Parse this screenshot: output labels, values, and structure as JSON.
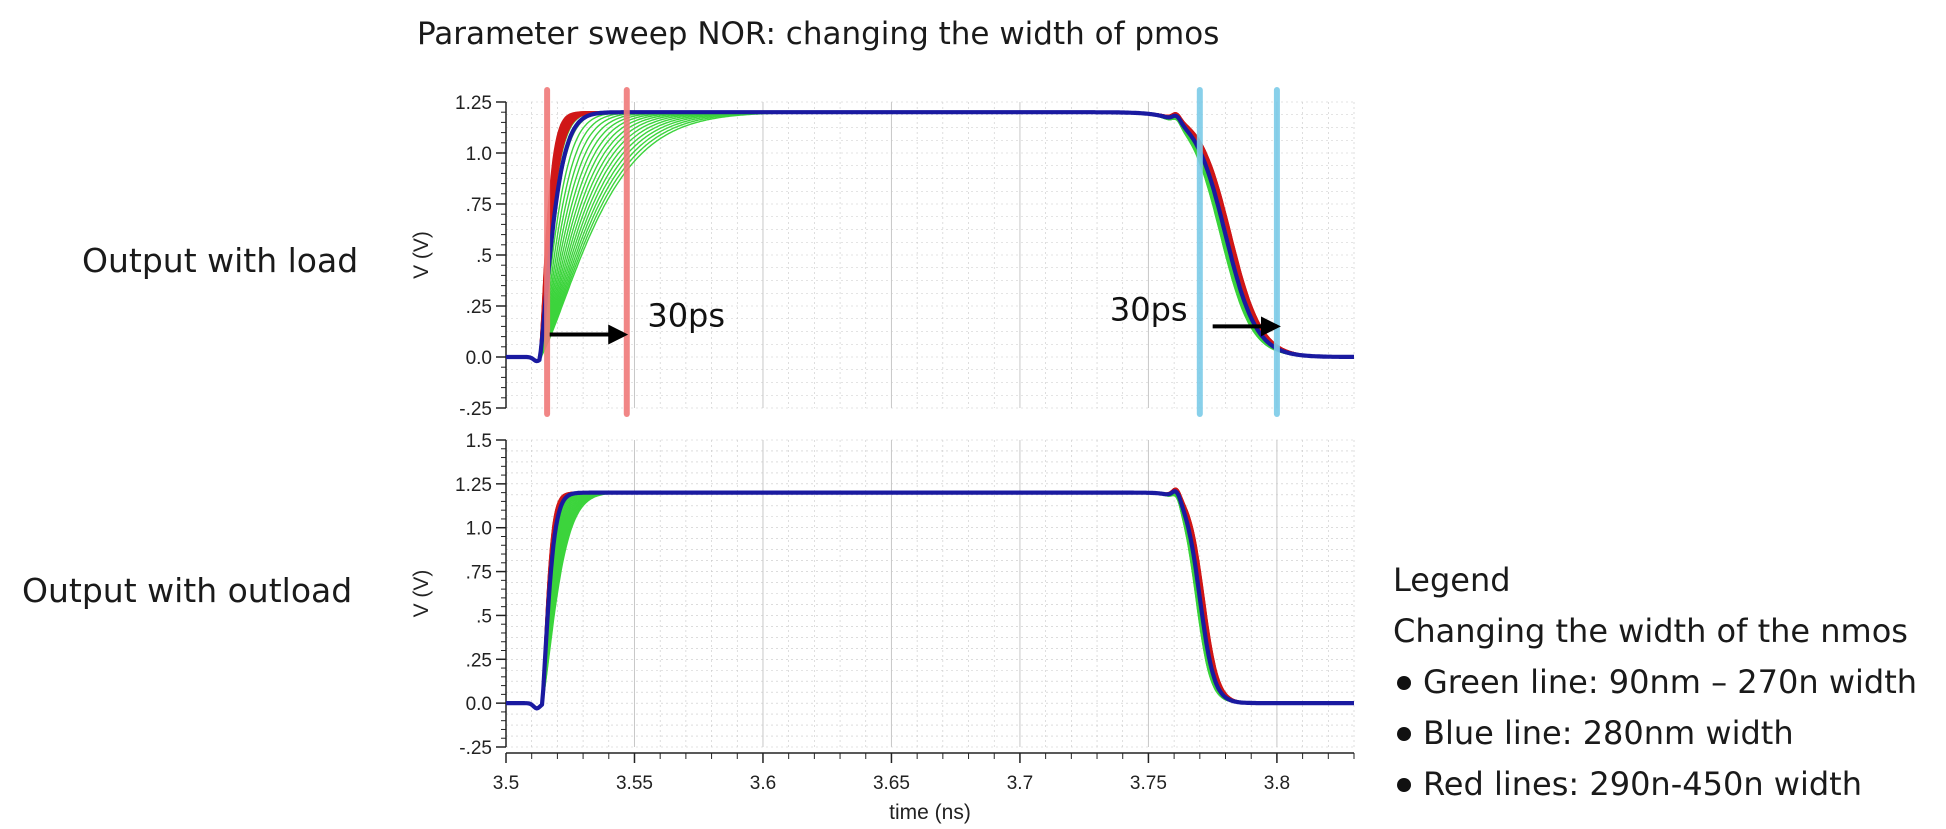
{
  "title": "Parameter sweep NOR: changing the width of pmos",
  "row_labels": [
    "Output with load",
    "Output with outload"
  ],
  "legend": {
    "heading": "Legend",
    "subheading": "Changing the width of the nmos",
    "items": [
      {
        "text": "Green line: 90nm – 270n width",
        "color": "#2fcc2f"
      },
      {
        "text": "Blue line: 280nm width",
        "color": "#1c1ca8"
      },
      {
        "text": "Red lines: 290n-450n width",
        "color": "#d42020"
      }
    ]
  },
  "colors": {
    "green": "#3cd43c",
    "blue": "#1a1aa0",
    "red": "#d01818",
    "marker_red": "#f07a7a",
    "marker_blue": "#7ccbe8",
    "grid": "#c8c8c8",
    "arrow": "#000000"
  },
  "chart_data": [
    {
      "type": "line",
      "xlabel": "",
      "ylabel": "V (V)",
      "xlim": [
        3.5,
        3.83
      ],
      "ylim": [
        -0.25,
        1.25
      ],
      "y_ticks": [
        1.25,
        1.0,
        0.75,
        0.5,
        0.25,
        0.0,
        -0.25
      ],
      "y_tick_labels": [
        "1.25",
        "1.0",
        ".75",
        ".5",
        ".25",
        "0.0",
        "-.25"
      ],
      "grid": true,
      "high_level": 1.2,
      "dip": {
        "x": 3.512,
        "y": -0.02
      },
      "overshoot": {
        "x": 3.761,
        "y": 1.23
      },
      "rise": {
        "start": 3.513,
        "tau_green_ns": [
          0.0045,
          0.026
        ],
        "tau_blue_ns": 0.0065,
        "tau_red_ns": [
          0.0038,
          0.0055
        ]
      },
      "fall": {
        "start": 3.764,
        "center_green": 3.778,
        "center_red": 3.782,
        "width_ns": 0.006
      },
      "vertical_markers": [
        {
          "x": 3.516,
          "color_key": "marker_red"
        },
        {
          "x": 3.547,
          "color_key": "marker_red"
        },
        {
          "x": 3.77,
          "color_key": "marker_blue"
        },
        {
          "x": 3.8,
          "color_key": "marker_blue"
        }
      ],
      "annotations": [
        {
          "text": "30ps",
          "x": 3.555,
          "y": 0.15,
          "arrow_from": [
            3.517,
            0.11
          ],
          "arrow_to": [
            3.546,
            0.11
          ]
        },
        {
          "text": "30ps",
          "x": 3.735,
          "y": 0.18,
          "arrow_from": [
            3.775,
            0.15
          ],
          "arrow_to": [
            3.8,
            0.15
          ]
        }
      ]
    },
    {
      "type": "line",
      "xlabel": "time (ns)",
      "ylabel": "V (V)",
      "xlim": [
        3.5,
        3.83
      ],
      "ylim": [
        -0.25,
        1.5
      ],
      "x_ticks": [
        3.5,
        3.55,
        3.6,
        3.65,
        3.7,
        3.75,
        3.8
      ],
      "x_tick_labels": [
        "3.5",
        "3.55",
        "3.6",
        "3.65",
        "3.7",
        "3.75",
        "3.8"
      ],
      "y_ticks": [
        1.5,
        1.25,
        1.0,
        0.75,
        0.5,
        0.25,
        0.0,
        -0.25
      ],
      "y_tick_labels": [
        "1.5",
        "1.25",
        "1.0",
        ".75",
        ".5",
        ".25",
        "0.0",
        "-.25"
      ],
      "grid": true,
      "high_level": 1.2,
      "dip": {
        "x": 3.512,
        "y": -0.03
      },
      "overshoot": {
        "x": 3.761,
        "y": 1.25
      },
      "rise": {
        "start": 3.514,
        "tau_green_ns": [
          0.003,
          0.0075
        ],
        "tau_blue_ns": 0.0035,
        "tau_red_ns": [
          0.0028,
          0.0033
        ]
      },
      "fall": {
        "start": 3.763,
        "center_green": 3.7685,
        "center_red": 3.7715,
        "width_ns": 0.0028
      }
    }
  ]
}
